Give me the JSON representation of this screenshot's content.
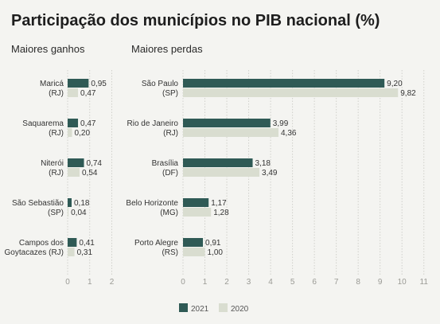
{
  "title": "Participação dos municípios no PIB nacional (%)",
  "colors": {
    "series_2021": "#2f5a55",
    "series_2020": "#d9ddd0",
    "background": "#f4f4f1",
    "grid": "#d0d0cb",
    "text": "#333333",
    "tick_text": "#9a9a95"
  },
  "legend": {
    "position": "bottom-center"
  },
  "chart_data": [
    {
      "type": "bar",
      "orientation": "horizontal",
      "title": "Maiores ganhos",
      "categories": [
        [
          "Maricá",
          "(RJ)"
        ],
        [
          "Saquarema",
          "(RJ)"
        ],
        [
          "Niterói",
          "(RJ)"
        ],
        [
          "São Sebastião",
          "(SP)"
        ],
        [
          "Campos dos",
          "Goytacazes (RJ)"
        ]
      ],
      "series": [
        {
          "name": "2021",
          "values": [
            0.95,
            0.47,
            0.74,
            0.18,
            0.41
          ],
          "labels": [
            "0,95",
            "0,47",
            "0,74",
            "0,18",
            "0,41"
          ]
        },
        {
          "name": "2020",
          "values": [
            0.47,
            0.2,
            0.54,
            0.04,
            0.31
          ],
          "labels": [
            "0,47",
            "0,20",
            "0,54",
            "0,04",
            "0,31"
          ]
        }
      ],
      "xlim": [
        0,
        2
      ],
      "xticks": [
        0,
        1,
        2
      ],
      "grid": true
    },
    {
      "type": "bar",
      "orientation": "horizontal",
      "title": "Maiores perdas",
      "categories": [
        [
          "São Paulo",
          "(SP)"
        ],
        [
          "Rio de Janeiro",
          "(RJ)"
        ],
        [
          "Brasília",
          "(DF)"
        ],
        [
          "Belo Horizonte",
          "(MG)"
        ],
        [
          "Porto Alegre",
          "(RS)"
        ]
      ],
      "series": [
        {
          "name": "2021",
          "values": [
            9.2,
            3.99,
            3.18,
            1.17,
            0.91
          ],
          "labels": [
            "9,20",
            "3,99",
            "3,18",
            "1,17",
            "0,91"
          ]
        },
        {
          "name": "2020",
          "values": [
            9.82,
            4.36,
            3.49,
            1.28,
            1.0
          ],
          "labels": [
            "9,82",
            "4,36",
            "3,49",
            "1,28",
            "1,00"
          ]
        }
      ],
      "xlim": [
        0,
        11
      ],
      "xticks": [
        0,
        1,
        2,
        3,
        4,
        5,
        6,
        7,
        8,
        9,
        10,
        11
      ],
      "grid": true
    }
  ]
}
